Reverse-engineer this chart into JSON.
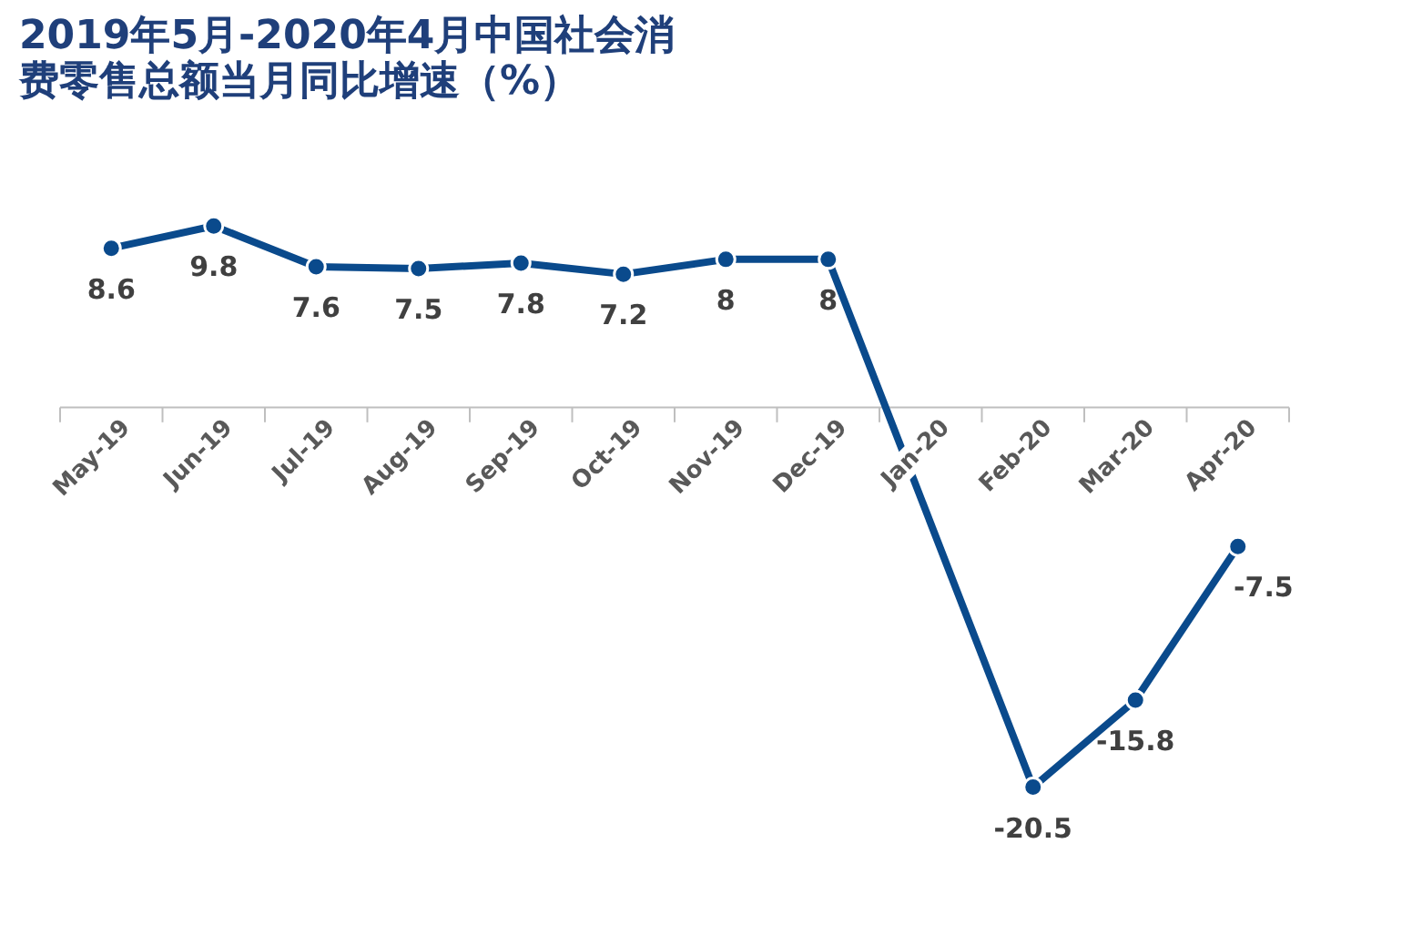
{
  "chart_data": {
    "type": "line",
    "title": "2019年5月-2020年4月中国社会消费零售总额当月同比增速（%）",
    "categories": [
      "May-19",
      "Jun-19",
      "Jul-19",
      "Aug-19",
      "Sep-19",
      "Oct-19",
      "Nov-19",
      "Dec-19",
      "Jan-20",
      "Feb-20",
      "Mar-20",
      "Apr-20"
    ],
    "series": [
      {
        "color": "#0a4a8c",
        "values": [
          8.6,
          9.8,
          7.6,
          7.5,
          7.8,
          7.2,
          8,
          8,
          null,
          -20.5,
          -15.8,
          -7.5
        ]
      }
    ],
    "data_labels": true,
    "marker": "circle",
    "line_style": "solid",
    "grid": false
  }
}
